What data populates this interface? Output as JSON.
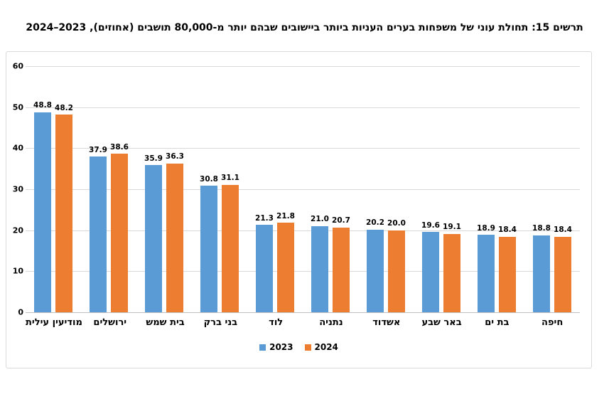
{
  "title": "תרשים 15: תחולת עוני של משפחות בערים העניות ביותר ביישובים שבהם יותר מ-80,000 תושבים (אחוזים), 2023–2024",
  "colors": {
    "series_2023": "#5B9BD5",
    "series_2024": "#ED7D31",
    "gridline": "#D9D9D9",
    "axis_line": "#BFBFBF",
    "frame_border": "#D9D9D9",
    "text": "#000000"
  },
  "chart_data": {
    "type": "bar",
    "title": "תרשים 15: תחולת עוני של משפחות בערים העניות ביותר ביישובים שבהם יותר מ-80,000 תושבים (אחוזים), 2023–2024",
    "categories": [
      "מודיעין עילית",
      "ירושלים",
      "בית שמש",
      "בני ברק",
      "לוד",
      "נתניה",
      "אשדוד",
      "באר שבע",
      "בת ים",
      "חיפה"
    ],
    "series": [
      {
        "name": "2023",
        "color": "#5B9BD5",
        "values": [
          48.8,
          37.9,
          35.9,
          30.8,
          21.3,
          21.0,
          20.2,
          19.6,
          18.9,
          18.8
        ]
      },
      {
        "name": "2024",
        "color": "#ED7D31",
        "values": [
          48.2,
          38.6,
          36.3,
          31.1,
          21.8,
          20.7,
          20.0,
          19.1,
          18.4,
          18.4
        ]
      }
    ],
    "ylim": [
      0,
      60
    ],
    "yticks": [
      0,
      10,
      20,
      30,
      40,
      50,
      60
    ],
    "xlabel": "",
    "ylabel": "",
    "grid": true,
    "value_labels": true,
    "legend_position": "bottom"
  },
  "legend": {
    "items": [
      "2023",
      "2024"
    ]
  }
}
